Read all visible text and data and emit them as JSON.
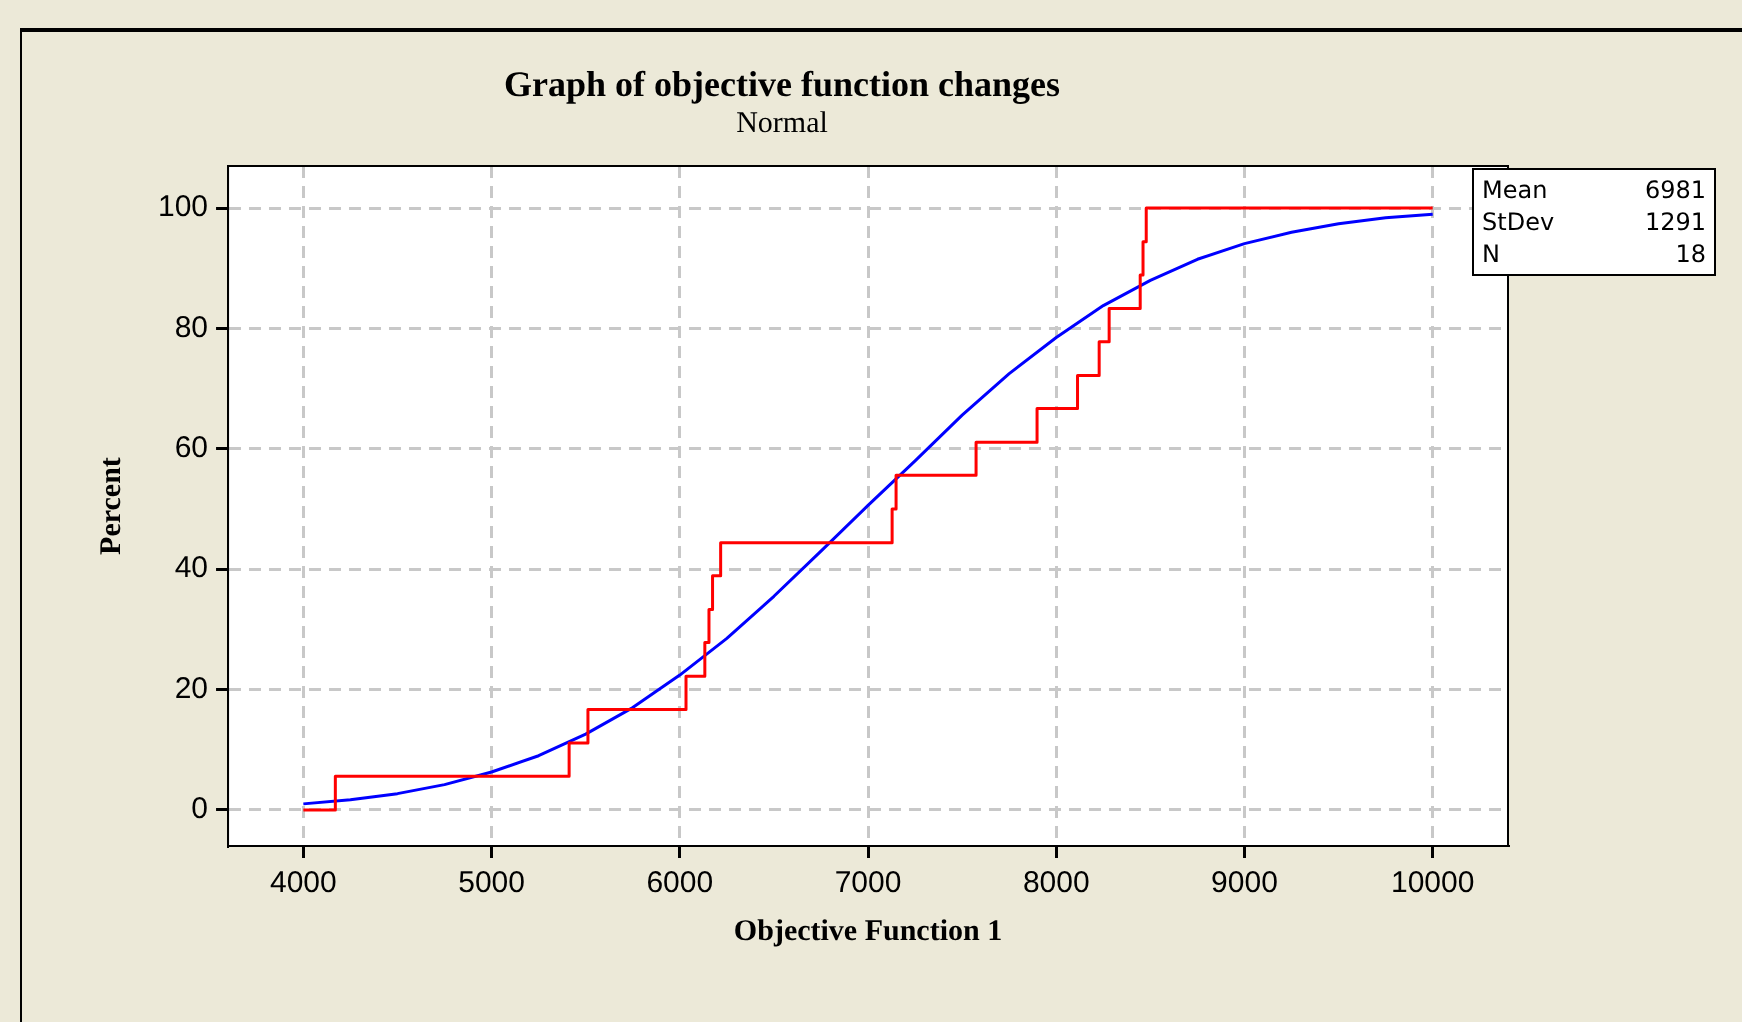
{
  "chart_data": {
    "type": "step",
    "title": "Graph of objective function changes",
    "subtitle": "Normal",
    "xlabel": "Objective Function 1",
    "ylabel": "Percent",
    "xlim": [
      3600,
      10400
    ],
    "xticks": [
      4000,
      5000,
      6000,
      7000,
      8000,
      9000,
      10000
    ],
    "ylim": [
      -6,
      107
    ],
    "yticks": [
      0,
      20,
      40,
      60,
      80,
      100
    ],
    "grid": true,
    "legend": false,
    "marker": "none",
    "annotations": [
      "Mean 6981",
      "StDev 1291",
      "N 18"
    ],
    "series": [
      {
        "type": "step",
        "color": "#ff0000",
        "x": [
          4000,
          4170,
          5412,
          5512,
          6033,
          6133,
          6155,
          6174,
          6217,
          7128,
          7149,
          7574,
          7898,
          8113,
          8228,
          8281,
          8446,
          8461,
          8478,
          10000
        ],
        "values": [
          0,
          5.6,
          11.1,
          16.7,
          22.2,
          27.8,
          33.3,
          38.9,
          44.4,
          50,
          55.6,
          61.1,
          66.7,
          72.2,
          77.8,
          83.3,
          88.9,
          94.4,
          100,
          100
        ]
      },
      {
        "type": "line",
        "color": "#0000ff",
        "x": [
          4000,
          4250,
          4500,
          4750,
          5000,
          5250,
          5500,
          5750,
          6000,
          6250,
          6500,
          6750,
          7000,
          7250,
          7500,
          7750,
          8000,
          8250,
          8500,
          8750,
          9000,
          9250,
          9500,
          9750,
          10000
        ],
        "values": [
          1.0,
          1.7,
          2.7,
          4.2,
          6.3,
          9.0,
          12.6,
          17.0,
          22.4,
          28.5,
          35.5,
          43.0,
          50.6,
          58.0,
          65.6,
          72.5,
          78.5,
          83.8,
          88.0,
          91.5,
          94.1,
          96.0,
          97.4,
          98.4,
          99.0
        ]
      }
    ]
  }
}
